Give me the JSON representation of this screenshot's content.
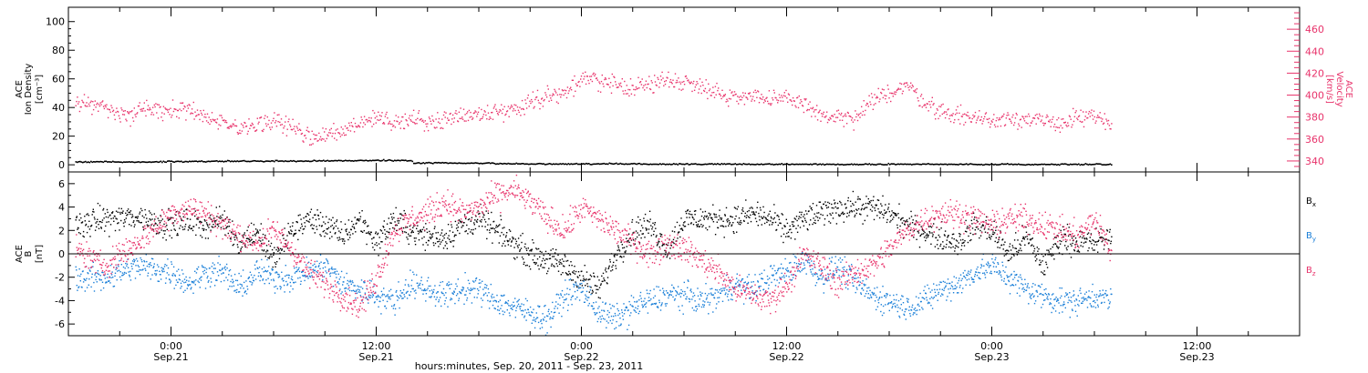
{
  "chart_data": [
    {
      "type": "scatter",
      "panel": "top",
      "ylabel_lines": [
        "ACE",
        "Ion Density"
      ],
      "ylabel_unit": "[cm⁻³]",
      "ylim": [
        -5,
        110
      ],
      "yticks": [
        0,
        20,
        40,
        60,
        80,
        100
      ],
      "y2label_lines": [
        "ACE",
        "Velocity"
      ],
      "y2label_unit": "[km/s]",
      "y2lim": [
        330,
        480
      ],
      "y2ticks": [
        340,
        360,
        380,
        400,
        420,
        440,
        460
      ],
      "series": [
        {
          "key": "density",
          "axis": "left",
          "color": "#000000",
          "x": [
            -5.6,
            -4,
            -2,
            0,
            4,
            8,
            12,
            14,
            14.2,
            15,
            18,
            20,
            22,
            24,
            26,
            28,
            30,
            32,
            34,
            36,
            38,
            40,
            42,
            44,
            46,
            48,
            50,
            52,
            54,
            55
          ],
          "y": [
            2.5,
            2.6,
            2.3,
            2.7,
            3.0,
            3.1,
            3.6,
            3.4,
            1.5,
            1.8,
            1.6,
            1.2,
            1.0,
            1.1,
            1.2,
            1.0,
            0.9,
            1.0,
            0.8,
            0.9,
            0.8,
            0.8,
            0.9,
            0.8,
            0.8,
            0.8,
            0.8,
            0.8,
            0.8,
            0.8
          ]
        },
        {
          "key": "velocity",
          "axis": "right",
          "color": "#e8336b",
          "x": [
            -5.6,
            -4.5,
            -3.5,
            -2.5,
            -1.5,
            0,
            1,
            2,
            3,
            4,
            5,
            6,
            7,
            8,
            9,
            10,
            11,
            12,
            13,
            14,
            15,
            16,
            17,
            18,
            19,
            20,
            21,
            22,
            23,
            24,
            25,
            26,
            27,
            28,
            29,
            30,
            31,
            32,
            33,
            34,
            35,
            36,
            37,
            38,
            39,
            40,
            41,
            42,
            43,
            44,
            45,
            46,
            47,
            48,
            49,
            50,
            51,
            52,
            53,
            54,
            55
          ],
          "y": [
            392,
            392,
            387,
            381,
            389,
            386,
            388,
            380,
            373,
            370,
            371,
            378,
            372,
            363,
            364,
            367,
            374,
            380,
            376,
            378,
            376,
            379,
            383,
            383,
            385,
            387,
            395,
            400,
            403,
            414,
            414,
            409,
            408,
            410,
            415,
            412,
            410,
            402,
            398,
            402,
            394,
            398,
            393,
            381,
            380,
            378,
            395,
            403,
            410,
            395,
            385,
            382,
            380,
            377,
            381,
            378,
            376,
            375,
            380,
            380,
            373
          ]
        }
      ]
    },
    {
      "type": "scatter",
      "panel": "bottom",
      "ylabel_lines": [
        "ACE",
        "B"
      ],
      "ylabel_unit": "[nT]",
      "ylim": [
        -7,
        7
      ],
      "yticks": [
        -6,
        -4,
        -2,
        0,
        2,
        4,
        6
      ],
      "zero_line": true,
      "legend_position": "right",
      "series": [
        {
          "key": "bx",
          "name_base": "B",
          "name_sub": "x",
          "color": "#000000",
          "x": [
            -5.6,
            -4,
            -2,
            0,
            1,
            2,
            3,
            4,
            5,
            6,
            7,
            8,
            9,
            10,
            11,
            12,
            13,
            14,
            15,
            16,
            17,
            18,
            19,
            20,
            21,
            22,
            23,
            24,
            25,
            26,
            27,
            28,
            29,
            30,
            31,
            32,
            33,
            34,
            35,
            36,
            37,
            38,
            39,
            40,
            41,
            42,
            43,
            44,
            45,
            46,
            47,
            48,
            49,
            50,
            51,
            52,
            53,
            54,
            55
          ],
          "y": [
            2.5,
            3.0,
            3.2,
            2.5,
            2.8,
            2.5,
            3.0,
            1.0,
            2.0,
            -0.5,
            2.0,
            3.0,
            2.5,
            1.5,
            3.0,
            1.0,
            3.0,
            2.0,
            1.5,
            1.5,
            2.5,
            3.0,
            2.0,
            1.0,
            0.0,
            -0.5,
            -1.0,
            -2.0,
            -3.0,
            0.0,
            2.0,
            2.5,
            0.5,
            3.0,
            3.0,
            3.0,
            3.0,
            3.5,
            3.0,
            2.0,
            3.0,
            3.5,
            4.0,
            4.0,
            4.0,
            3.5,
            2.5,
            2.0,
            1.5,
            1.0,
            2.5,
            2.0,
            0.0,
            1.5,
            -1.0,
            1.5,
            1.0,
            1.0,
            1.5
          ]
        },
        {
          "key": "by",
          "name_base": "B",
          "name_sub": "y",
          "color": "#1a7fd8",
          "x": [
            -5.6,
            -4,
            -2,
            0,
            1,
            2,
            3,
            4,
            5,
            6,
            7,
            8,
            9,
            10,
            11,
            12,
            13,
            14,
            15,
            16,
            17,
            18,
            19,
            20,
            21,
            22,
            23,
            24,
            25,
            26,
            27,
            28,
            29,
            30,
            31,
            32,
            33,
            34,
            35,
            36,
            37,
            38,
            39,
            40,
            41,
            42,
            43,
            44,
            45,
            46,
            47,
            48,
            49,
            50,
            51,
            52,
            53,
            54,
            55
          ],
          "y": [
            -2.0,
            -2.0,
            -1.0,
            -1.5,
            -2.5,
            -1.5,
            -1.5,
            -3.0,
            -1.5,
            -2.0,
            -2.0,
            -1.5,
            -1.0,
            -2.5,
            -3.0,
            -3.5,
            -4.0,
            -2.5,
            -3.0,
            -3.5,
            -3.0,
            -3.0,
            -4.0,
            -4.5,
            -5.0,
            -5.5,
            -3.5,
            -3.0,
            -5.0,
            -5.5,
            -4.5,
            -4.0,
            -3.5,
            -3.5,
            -4.0,
            -3.5,
            -2.5,
            -3.0,
            -2.0,
            -1.5,
            -0.5,
            -2.0,
            -1.0,
            -2.5,
            -3.5,
            -4.0,
            -4.5,
            -4.0,
            -3.0,
            -2.5,
            -1.5,
            -1.0,
            -2.0,
            -3.0,
            -3.5,
            -4.0,
            -4.0,
            -3.5,
            -4.0
          ]
        },
        {
          "key": "bz",
          "name_base": "B",
          "name_sub": "z",
          "color": "#e8336b",
          "x": [
            -5.6,
            -4,
            -2,
            0,
            1,
            2,
            3,
            4,
            5,
            6,
            7,
            8,
            9,
            10,
            11,
            12,
            13,
            14,
            15,
            16,
            17,
            18,
            19,
            20,
            21,
            22,
            23,
            24,
            25,
            26,
            27,
            28,
            29,
            30,
            31,
            32,
            33,
            34,
            35,
            36,
            37,
            38,
            39,
            40,
            41,
            42,
            43,
            44,
            45,
            46,
            47,
            48,
            49,
            50,
            51,
            52,
            53,
            54,
            55
          ],
          "y": [
            0.5,
            -1.0,
            1.0,
            3.5,
            4.0,
            3.5,
            2.5,
            1.5,
            1.0,
            2.0,
            0.5,
            -1.5,
            -2.5,
            -3.5,
            -4.5,
            -2.0,
            2.0,
            3.0,
            3.5,
            4.5,
            3.5,
            4.0,
            5.0,
            5.5,
            4.5,
            3.0,
            2.0,
            4.0,
            3.0,
            2.0,
            1.0,
            0.0,
            1.0,
            0.5,
            -0.5,
            -1.5,
            -3.0,
            -3.5,
            -4.0,
            -2.5,
            0.0,
            -1.0,
            -2.5,
            -1.5,
            -1.0,
            0.5,
            2.0,
            3.0,
            3.5,
            3.5,
            3.0,
            2.5,
            3.0,
            3.0,
            2.5,
            2.0,
            1.5,
            3.0,
            0.0
          ]
        }
      ]
    }
  ],
  "xaxis": {
    "xlim": [
      -6,
      66
    ],
    "major_ticks": [
      0,
      12,
      24,
      36,
      48,
      60
    ],
    "tick_labels": [
      {
        "at": 0,
        "time": "0:00",
        "date": "Sep.21"
      },
      {
        "at": 12,
        "time": "12:00",
        "date": "Sep.21"
      },
      {
        "at": 24,
        "time": "0:00",
        "date": "Sep.22"
      },
      {
        "at": 36,
        "time": "12:00",
        "date": "Sep.22"
      },
      {
        "at": 48,
        "time": "0:00",
        "date": "Sep.23"
      },
      {
        "at": 60,
        "time": "12:00",
        "date": "Sep.23"
      }
    ],
    "title": "hours:minutes, Sep. 20, 2011 - Sep. 23, 2011"
  }
}
